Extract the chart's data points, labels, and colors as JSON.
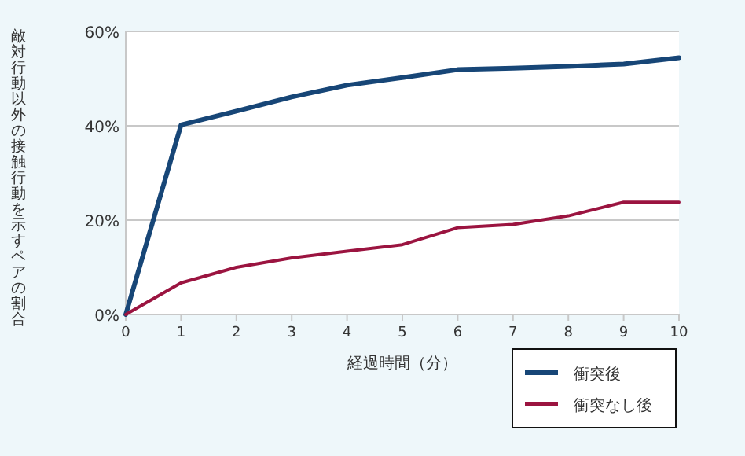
{
  "chart_data": {
    "type": "line",
    "xlabel": "経過時間（分）",
    "ylabel": "敵対行動以外の接触行動を示すペアの割合",
    "x": [
      0,
      1,
      2,
      3,
      4,
      5,
      6,
      7,
      8,
      9,
      10
    ],
    "xlim": [
      0,
      10
    ],
    "xticks": [
      0,
      1,
      2,
      3,
      4,
      5,
      6,
      7,
      8,
      9,
      10
    ],
    "ylim": [
      0,
      60
    ],
    "yticks": [
      {
        "value": 0,
        "label": "0%"
      },
      {
        "value": 20,
        "label": "20%"
      },
      {
        "value": 40,
        "label": "40%"
      },
      {
        "value": 60,
        "label": "60%"
      }
    ],
    "grid": "y",
    "legend": "bottom right",
    "line_style": "solid",
    "marker": "none",
    "series": [
      {
        "name": "衝突後",
        "color": "#174677",
        "values": [
          0,
          40.2,
          43.1,
          46.1,
          48.6,
          50.2,
          51.9,
          52.2,
          52.6,
          53.1,
          54.4
        ]
      },
      {
        "name": "衝突なし後",
        "color": "#9b1440",
        "values": [
          0,
          6.7,
          10,
          12,
          13.4,
          14.8,
          18.4,
          19.1,
          20.9,
          23.8,
          23.8
        ]
      }
    ]
  }
}
